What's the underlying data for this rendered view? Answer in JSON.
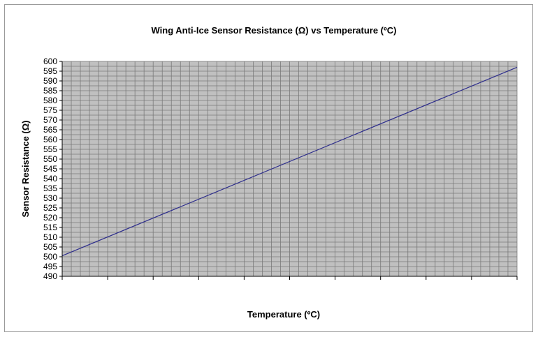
{
  "chart_data": {
    "type": "line",
    "title": "Wing Anti-Ice Sensor Resistance (Ω) vs Temperature (ºC)",
    "xlabel": "Temperature (ºC)",
    "ylabel": "Sensor Resistance (Ω)",
    "ylim": [
      490,
      600
    ],
    "y_ticks": [
      490,
      495,
      500,
      505,
      510,
      515,
      520,
      525,
      530,
      535,
      540,
      545,
      550,
      555,
      560,
      565,
      570,
      575,
      580,
      585,
      590,
      595,
      600
    ],
    "x_ticks_labeled": false,
    "x_major_tick_count": 10,
    "x_grid_columns": 50,
    "y_grid_rows": 44,
    "grid": true,
    "plot_background": "#c0c0c0",
    "grid_color": "#7a7a7a",
    "line_color": "#2e2e8c",
    "series": [
      {
        "values_normalized_x": [
          0,
          1
        ],
        "values": [
          500.5,
          597
        ]
      }
    ]
  }
}
